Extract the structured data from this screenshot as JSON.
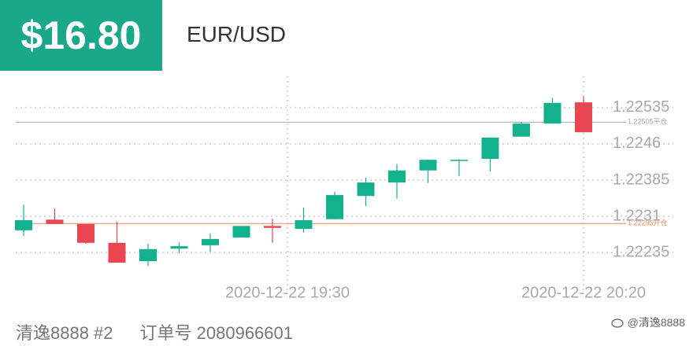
{
  "header": {
    "profit": "$16.80",
    "symbol": "EUR/USD"
  },
  "chart_data": {
    "type": "candlestick",
    "categories": [
      null,
      null,
      null,
      null,
      null,
      null,
      null,
      null,
      "2020-12-22 19:30",
      null,
      null,
      null,
      null,
      null,
      null,
      null,
      null,
      null,
      "2020-12-22 20:20"
    ],
    "open": [
      1.22281,
      1.22303,
      1.22294,
      1.22255,
      1.22217,
      1.22243,
      1.2225,
      1.22266,
      1.2229,
      1.22284,
      1.22304,
      1.22352,
      1.2238,
      1.22405,
      1.22427,
      1.22429,
      1.22475,
      1.22502,
      1.22546
    ],
    "high": [
      1.22334,
      1.22326,
      1.22294,
      1.22299,
      1.22253,
      1.22256,
      1.22274,
      1.2229,
      1.22305,
      1.22328,
      1.22361,
      1.2239,
      1.22418,
      1.22427,
      1.22428,
      1.22473,
      1.22506,
      1.22555,
      1.22558
    ],
    "low": [
      1.22269,
      1.22294,
      1.22253,
      1.22214,
      1.22207,
      1.22233,
      1.22237,
      1.22266,
      1.22255,
      1.22276,
      1.22304,
      1.22331,
      1.22346,
      1.22379,
      1.22393,
      1.22403,
      1.22475,
      1.22502,
      1.22484
    ],
    "close": [
      1.22302,
      1.22294,
      1.22255,
      1.22214,
      1.22242,
      1.22248,
      1.22263,
      1.2229,
      1.22286,
      1.22302,
      1.22354,
      1.2238,
      1.22405,
      1.22427,
      1.22427,
      1.22473,
      1.22502,
      1.22545,
      1.22484
    ],
    "up_color": "#14b18f",
    "down_color": "#e8474f",
    "ylim": [
      1.2217,
      1.226
    ],
    "yticks": [
      1.22235,
      1.2231,
      1.22385,
      1.2246,
      1.22535
    ],
    "grid": true,
    "ref_lines": [
      {
        "value": 1.22505,
        "label": "1.22505平仓",
        "color": "#a8a8a8"
      },
      {
        "value": 1.22295,
        "label": "1.22295开仓",
        "color": "#f08a5d"
      }
    ]
  },
  "footer": {
    "account": "清逸8888 #2",
    "order": "订单号 2080966601",
    "watermark": "@清逸8888"
  }
}
